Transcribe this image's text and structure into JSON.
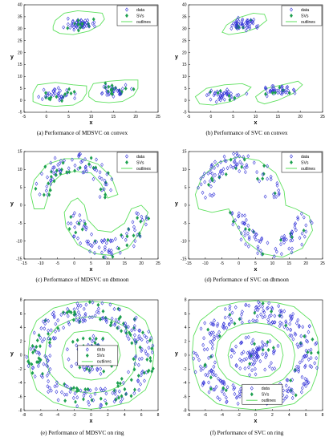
{
  "colors": {
    "data": "#3030d8",
    "svs": "#1ea050",
    "outlines": "#5ee05e",
    "axis": "#000000"
  },
  "chart_data": [
    {
      "type": "scatter",
      "caption": "(a) Performance of MDSVC on convex",
      "xlabel": "x",
      "ylabel": "y",
      "xlim": [
        -5,
        25
      ],
      "ylim": [
        -5,
        40
      ],
      "xticks": [
        -5,
        0,
        5,
        10,
        15,
        20,
        25
      ],
      "yticks": [
        -5,
        0,
        5,
        10,
        15,
        20,
        25,
        30,
        35,
        40
      ],
      "legend": {
        "position": "top-right",
        "entries": [
          "data",
          "SVs",
          "outlines"
        ]
      },
      "clusters": [
        {
          "shape": "blob",
          "cx": 7.5,
          "cy": 32,
          "rx": 3.8,
          "ry": 2.8,
          "n": 55
        },
        {
          "shape": "blob",
          "cx": 3,
          "cy": 2.2,
          "rx": 5,
          "ry": 3,
          "n": 45
        },
        {
          "shape": "blob",
          "cx": 15,
          "cy": 4,
          "rx": 4.5,
          "ry": 3,
          "n": 45
        }
      ],
      "svs_ratio": 0.3,
      "outlines": [
        [
          [
            1.5,
            31
          ],
          [
            2,
            33.5
          ],
          [
            4,
            36.5
          ],
          [
            7,
            37.5
          ],
          [
            10,
            37
          ],
          [
            12.5,
            36.5
          ],
          [
            13,
            34
          ],
          [
            12,
            31.5
          ],
          [
            9.5,
            29
          ],
          [
            6,
            27.5
          ],
          [
            3,
            28
          ],
          [
            1.5,
            29.5
          ]
        ],
        [
          [
            -3,
            3
          ],
          [
            -2,
            6.5
          ],
          [
            2,
            7.5
          ],
          [
            6,
            6.5
          ],
          [
            9,
            6
          ],
          [
            9,
            3
          ],
          [
            8,
            0
          ],
          [
            6,
            -2
          ],
          [
            2,
            -2.5
          ],
          [
            -1,
            -2
          ],
          [
            -3,
            -0.5
          ]
        ],
        [
          [
            9.5,
            3.5
          ],
          [
            10.5,
            7
          ],
          [
            14,
            8
          ],
          [
            17.5,
            8.5
          ],
          [
            20.5,
            8.5
          ],
          [
            20.5,
            5
          ],
          [
            19.5,
            2
          ],
          [
            17,
            -0.5
          ],
          [
            14,
            -1
          ],
          [
            11,
            -0.5
          ],
          [
            9.5,
            1.5
          ]
        ]
      ]
    },
    {
      "type": "scatter",
      "caption": "(b) Performance of SVC on convex",
      "xlabel": "x",
      "ylabel": "y",
      "xlim": [
        -5,
        25
      ],
      "ylim": [
        -5,
        40
      ],
      "xticks": [
        -5,
        0,
        5,
        10,
        15,
        20,
        25
      ],
      "yticks": [
        -5,
        0,
        5,
        10,
        15,
        20,
        25,
        30,
        35,
        40
      ],
      "legend": {
        "position": "top-right",
        "entries": [
          "data",
          "SVs",
          "outlines"
        ]
      },
      "clusters": [
        {
          "shape": "blob",
          "cx": 7.5,
          "cy": 32,
          "rx": 3.8,
          "ry": 2.8,
          "n": 55
        },
        {
          "shape": "blob",
          "cx": 3,
          "cy": 2.2,
          "rx": 5,
          "ry": 3,
          "n": 45
        },
        {
          "shape": "blob",
          "cx": 15,
          "cy": 4,
          "rx": 4.5,
          "ry": 3,
          "n": 45
        }
      ],
      "svs_ratio": 0.12,
      "outlines": [
        [
          [
            2.5,
            28.5
          ],
          [
            3.5,
            31.5
          ],
          [
            6,
            34.5
          ],
          [
            9.5,
            36.5
          ],
          [
            12,
            36
          ],
          [
            12.5,
            33.5
          ],
          [
            10.5,
            30.5
          ],
          [
            7.5,
            28.5
          ],
          [
            4,
            27.5
          ]
        ],
        [
          [
            -3.5,
            1.5
          ],
          [
            -1,
            5
          ],
          [
            3,
            6.5
          ],
          [
            7,
            7
          ],
          [
            9,
            5.5
          ],
          [
            7.5,
            2.5
          ],
          [
            4.5,
            -0.5
          ],
          [
            0.5,
            -2
          ],
          [
            -2.5,
            -1.5
          ]
        ],
        [
          [
            10,
            1.5
          ],
          [
            12.5,
            5
          ],
          [
            16,
            6.5
          ],
          [
            19.5,
            8
          ],
          [
            20.5,
            6.5
          ],
          [
            18.5,
            3
          ],
          [
            15,
            0
          ],
          [
            12,
            -1.5
          ],
          [
            10.5,
            -0.5
          ]
        ]
      ]
    },
    {
      "type": "scatter",
      "caption": "(c) Performance of MDSVC on dbmoon",
      "xlabel": "x",
      "ylabel": "y",
      "xlim": [
        -15,
        25
      ],
      "ylim": [
        -15,
        15
      ],
      "xticks": [
        -15,
        -10,
        -5,
        0,
        5,
        10,
        15,
        20,
        25
      ],
      "yticks": [
        -15,
        -10,
        -5,
        0,
        5,
        10,
        15
      ],
      "legend": {
        "position": "top-right",
        "entries": [
          "data",
          "SVs",
          "outlines"
        ]
      },
      "clusters": [
        {
          "shape": "arc",
          "cx": 0,
          "cy": 2,
          "r": 10,
          "a0": 0,
          "a1": 180,
          "w": 2.6,
          "n": 90
        },
        {
          "shape": "arc",
          "cx": 10,
          "cy": -2,
          "r": 10,
          "a0": 180,
          "a1": 360,
          "w": 2.6,
          "n": 90
        }
      ],
      "svs_ratio": 0.3,
      "outlines": [
        [
          [
            -13,
            3
          ],
          [
            -12,
            7
          ],
          [
            -8,
            11.5
          ],
          [
            -3,
            13
          ],
          [
            2,
            13
          ],
          [
            7,
            11.5
          ],
          [
            11,
            8
          ],
          [
            13,
            3
          ],
          [
            10,
            2
          ],
          [
            8,
            6
          ],
          [
            5,
            9
          ],
          [
            0,
            9.5
          ],
          [
            -4,
            8.5
          ],
          [
            -7,
            6
          ],
          [
            -8,
            2
          ],
          [
            -9,
            -1
          ],
          [
            -12,
            -1
          ]
        ],
        [
          [
            -3,
            -2
          ],
          [
            -2.5,
            -6
          ],
          [
            1,
            -11
          ],
          [
            6,
            -13.5
          ],
          [
            11,
            -14
          ],
          [
            16,
            -12
          ],
          [
            20,
            -7
          ],
          [
            22,
            -2
          ],
          [
            20,
            0
          ],
          [
            17,
            -1
          ],
          [
            15,
            -5
          ],
          [
            11,
            -7.5
          ],
          [
            7,
            -7
          ],
          [
            4,
            -4
          ],
          [
            3,
            0
          ],
          [
            1,
            2
          ],
          [
            -1,
            1
          ]
        ]
      ]
    },
    {
      "type": "scatter",
      "caption": "(d) Performance of SVC on dbmoon",
      "xlabel": "x",
      "ylabel": "y",
      "xlim": [
        -15,
        25
      ],
      "ylim": [
        -15,
        15
      ],
      "xticks": [
        -15,
        -10,
        -5,
        0,
        5,
        10,
        15,
        20,
        25
      ],
      "yticks": [
        -15,
        -10,
        -5,
        0,
        5,
        10,
        15
      ],
      "legend": {
        "position": "top-right",
        "entries": [
          "data",
          "SVs",
          "outlines"
        ]
      },
      "clusters": [
        {
          "shape": "arc",
          "cx": 0,
          "cy": 2,
          "r": 10,
          "a0": 0,
          "a1": 180,
          "w": 2.6,
          "n": 90
        },
        {
          "shape": "arc",
          "cx": 10,
          "cy": -2,
          "r": 10,
          "a0": 180,
          "a1": 360,
          "w": 2.6,
          "n": 90
        }
      ],
      "svs_ratio": 0.1,
      "outlines": [
        [
          [
            -13,
            3
          ],
          [
            -11,
            8
          ],
          [
            -6,
            12
          ],
          [
            0,
            13.5
          ],
          [
            6,
            12.5
          ],
          [
            11,
            9
          ],
          [
            13.5,
            4
          ],
          [
            14,
            0
          ],
          [
            17,
            -1
          ],
          [
            21,
            -3
          ],
          [
            22,
            -7
          ],
          [
            19,
            -12
          ],
          [
            13,
            -14.5
          ],
          [
            7,
            -13.5
          ],
          [
            2,
            -10
          ],
          [
            -1,
            -5
          ],
          [
            -3,
            -1
          ],
          [
            -8,
            -2
          ],
          [
            -12,
            -1
          ]
        ]
      ]
    },
    {
      "type": "scatter",
      "caption": "(e) Performance of MDSVC on ring",
      "xlabel": "x",
      "ylabel": "y",
      "xlim": [
        -8,
        8
      ],
      "ylim": [
        -8,
        8
      ],
      "xticks": [
        -8,
        -6,
        -4,
        -2,
        0,
        2,
        4,
        6,
        8
      ],
      "yticks": [
        -8,
        -6,
        -4,
        -2,
        0,
        2,
        4,
        6,
        8
      ],
      "legend": {
        "position": "inner-top",
        "entries": [
          "data",
          "SVs",
          "outlines"
        ]
      },
      "clusters": [
        {
          "shape": "ring",
          "cx": 0,
          "cy": 0,
          "r": 6.3,
          "w": 1.4,
          "n": 300
        },
        {
          "shape": "ring",
          "cx": 0,
          "cy": 0,
          "r": 1.6,
          "w": 1.4,
          "n": 90
        }
      ],
      "svs_ratio": 0.3,
      "outlines": [
        [
          [
            -7.5,
            0
          ],
          [
            -7.3,
            2.8
          ],
          [
            -6.5,
            5
          ],
          [
            -4.5,
            6.8
          ],
          [
            -2,
            7.6
          ],
          [
            0,
            7.8
          ],
          [
            2.5,
            7.5
          ],
          [
            4.5,
            6.8
          ],
          [
            6.5,
            5
          ],
          [
            7.3,
            2.5
          ],
          [
            7.5,
            0
          ],
          [
            7.2,
            -2.8
          ],
          [
            6.5,
            -5
          ],
          [
            4.5,
            -6.8
          ],
          [
            2,
            -7.5
          ],
          [
            0,
            -7.8
          ],
          [
            -2.5,
            -7.5
          ],
          [
            -4.5,
            -6.8
          ],
          [
            -6.5,
            -5
          ],
          [
            -7.2,
            -2.5
          ]
        ],
        [
          [
            -5.5,
            0
          ],
          [
            -5.2,
            2.5
          ],
          [
            -4,
            4.2
          ],
          [
            -2,
            5.3
          ],
          [
            0,
            5.6
          ],
          [
            2,
            5.3
          ],
          [
            4,
            4.2
          ],
          [
            5.2,
            2
          ],
          [
            5.4,
            0
          ],
          [
            5,
            -2.5
          ],
          [
            3.8,
            -4.3
          ],
          [
            2,
            -5.2
          ],
          [
            0,
            -5.5
          ],
          [
            -2,
            -5.2
          ],
          [
            -3.8,
            -4.2
          ],
          [
            -5,
            -2.5
          ]
        ],
        [
          [
            -3.5,
            0
          ],
          [
            -3,
            2
          ],
          [
            -2,
            3.3
          ],
          [
            0,
            3.6
          ],
          [
            2,
            3.3
          ],
          [
            3.2,
            1.8
          ],
          [
            3.5,
            0
          ],
          [
            3,
            -2
          ],
          [
            1.8,
            -3.3
          ],
          [
            0,
            -3.6
          ],
          [
            -2,
            -3.2
          ],
          [
            -3.2,
            -1.8
          ]
        ]
      ]
    },
    {
      "type": "scatter",
      "caption": "(f) Performance of SVC on ring",
      "xlabel": "x",
      "ylabel": "y",
      "xlim": [
        -8,
        8
      ],
      "ylim": [
        -8,
        8
      ],
      "xticks": [
        -8,
        -6,
        -4,
        -2,
        0,
        2,
        4,
        6,
        8
      ],
      "yticks": [
        -8,
        -6,
        -4,
        -2,
        0,
        2,
        4,
        6,
        8
      ],
      "legend": {
        "position": "inner-bottom",
        "entries": [
          "data",
          "SVs",
          "outlines"
        ]
      },
      "clusters": [
        {
          "shape": "ring",
          "cx": 0,
          "cy": 0,
          "r": 6.3,
          "w": 1.4,
          "n": 300
        },
        {
          "shape": "ring",
          "cx": 0,
          "cy": 0,
          "r": 1.6,
          "w": 1.4,
          "n": 90
        }
      ],
      "svs_ratio": 0.1,
      "outlines": [
        [
          [
            -7.6,
            0
          ],
          [
            -7.4,
            2.8
          ],
          [
            -6.6,
            5
          ],
          [
            -4.5,
            7
          ],
          [
            -2,
            7.7
          ],
          [
            0,
            7.9
          ],
          [
            2.5,
            7.6
          ],
          [
            4.6,
            7
          ],
          [
            6.6,
            5
          ],
          [
            7.4,
            2.5
          ],
          [
            7.6,
            0
          ],
          [
            7.3,
            -2.8
          ],
          [
            6.6,
            -5
          ],
          [
            4.6,
            -7
          ],
          [
            2,
            -7.6
          ],
          [
            0,
            -7.9
          ],
          [
            -2.5,
            -7.6
          ],
          [
            -4.6,
            -7
          ],
          [
            -6.6,
            -5
          ],
          [
            -7.3,
            -2.5
          ]
        ],
        [
          [
            -4.8,
            0
          ],
          [
            -4.5,
            2
          ],
          [
            -3.4,
            3.6
          ],
          [
            -1.6,
            4.5
          ],
          [
            0,
            4.7
          ],
          [
            1.8,
            4.4
          ],
          [
            3.4,
            3.4
          ],
          [
            4.4,
            1.8
          ],
          [
            4.7,
            0
          ],
          [
            4.4,
            -2
          ],
          [
            3.3,
            -3.5
          ],
          [
            1.6,
            -4.4
          ],
          [
            0,
            -4.7
          ],
          [
            -1.8,
            -4.4
          ],
          [
            -3.4,
            -3.4
          ],
          [
            -4.4,
            -1.8
          ]
        ],
        [
          [
            -3.3,
            0
          ],
          [
            -2.9,
            1.8
          ],
          [
            -1.7,
            3
          ],
          [
            0,
            3.4
          ],
          [
            1.8,
            3
          ],
          [
            3,
            1.7
          ],
          [
            3.3,
            0
          ],
          [
            2.9,
            -1.8
          ],
          [
            1.7,
            -3
          ],
          [
            0,
            -3.3
          ],
          [
            -1.8,
            -2.9
          ],
          [
            -3,
            -1.6
          ]
        ]
      ]
    }
  ]
}
